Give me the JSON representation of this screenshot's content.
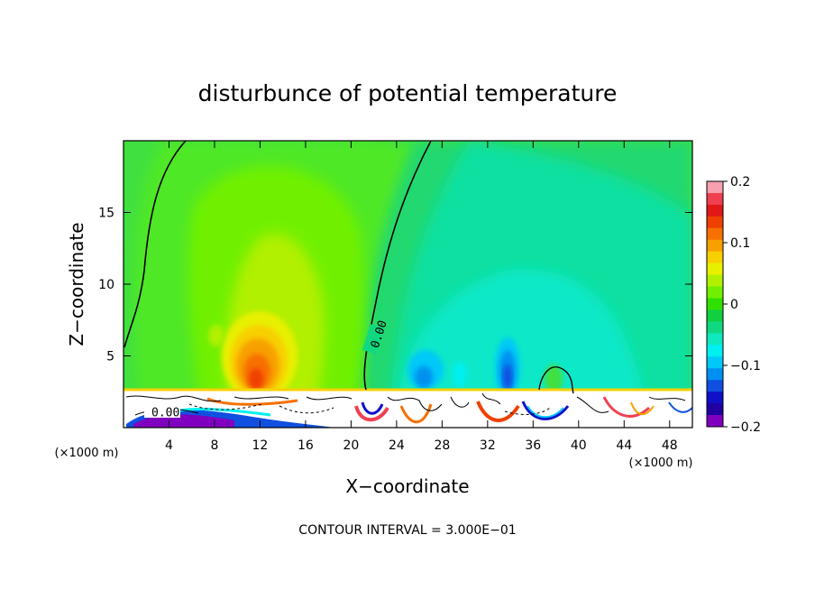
{
  "chart_data": {
    "type": "heatmap",
    "title": "disturbunce of potential temperature",
    "xlabel": "X−coordinate",
    "ylabel": "Z−coordinate",
    "x_unit": "(×1000 m)",
    "z_unit": "(×1000 m)",
    "xlim": [
      0,
      50
    ],
    "ylim": [
      0,
      20
    ],
    "x_ticks": [
      4,
      8,
      12,
      16,
      20,
      24,
      28,
      32,
      36,
      40,
      44,
      48
    ],
    "x_tick_labels": [
      "4",
      "8",
      "12",
      "16",
      "20",
      "24",
      "28",
      "32",
      "36",
      "40",
      "44",
      "48"
    ],
    "y_ticks": [
      5,
      10,
      15
    ],
    "y_tick_labels": [
      "5",
      "10",
      "15"
    ],
    "contour_labels": [
      {
        "text": "0.00",
        "x": 22.5,
        "z": 6.5,
        "angle": -72
      },
      {
        "text": "0.00",
        "x": 3.7,
        "z": 1.0,
        "angle": 0
      }
    ],
    "colorbar": {
      "range": [
        -0.2,
        0.2
      ],
      "tick_values": [
        0.2,
        0.1,
        0,
        -0.1,
        -0.2
      ],
      "tick_labels": [
        "0.2",
        "0.1",
        "0",
        "−0.1",
        "−0.2"
      ],
      "colors": [
        "#f8a0b0",
        "#f04050",
        "#e01818",
        "#f04000",
        "#f87000",
        "#f8a000",
        "#f8d000",
        "#e8f000",
        "#b0f000",
        "#70f000",
        "#30e000",
        "#10d040",
        "#10d880",
        "#10e8c0",
        "#00f0f0",
        "#00c8f8",
        "#0090f0",
        "#1050e0",
        "#1010c8",
        "#2000a0",
        "#8000c0"
      ]
    },
    "features": [
      {
        "kind": "positive-anomaly",
        "x": 12,
        "z": 3.2,
        "peak": 0.12
      },
      {
        "kind": "positive-anomaly",
        "x": 15,
        "z": 10.5,
        "peak": 0.06
      },
      {
        "kind": "negative-anomaly",
        "x": 33,
        "z": 3.8,
        "peak": -0.12
      },
      {
        "kind": "negative-anomaly",
        "x": 26.5,
        "z": 4.5,
        "peak": -0.08
      },
      {
        "kind": "negative-region",
        "x": 30,
        "z": 9.0,
        "peak": -0.04
      }
    ],
    "contour_interval": "CONTOUR INTERVAL = 3.000E−01"
  }
}
